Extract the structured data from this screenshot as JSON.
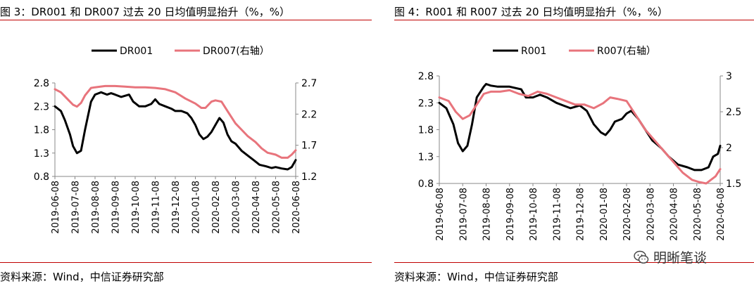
{
  "watermark": {
    "text": "明晰笔谈",
    "icon": "wechat-icon"
  },
  "panels": [
    {
      "title": "图 3：DR001 和 DR007 过去 20 日均值明显抬升（%，%）",
      "source": "资料来源：Wind，中信证券研究部"
    },
    {
      "title": "图 4：R001 和 R007 过去 20 日均值明显抬升（%，%）",
      "source": "资料来源：Wind，中信证券研究部"
    }
  ],
  "chart_data": [
    {
      "type": "line",
      "x_tick_labels": [
        "2019-06-08",
        "2019-07-08",
        "2019-08-08",
        "2019-09-08",
        "2019-10-08",
        "2019-11-08",
        "2019-12-08",
        "2020-01-08",
        "2020-02-08",
        "2020-03-08",
        "2020-04-08",
        "2020-05-08",
        "2020-06-08"
      ],
      "y_left": {
        "ticks": [
          "0.8",
          "1.3",
          "1.8",
          "2.3",
          "2.8"
        ],
        "range": [
          0.8,
          2.8
        ]
      },
      "y_right": {
        "ticks": [
          "1.2",
          "1.7",
          "2.2",
          "2.7"
        ],
        "range": [
          1.2,
          2.7
        ]
      },
      "legend_position": "top-center",
      "grid": false,
      "series": [
        {
          "name": "DR001",
          "axis": "left",
          "color": "#000000",
          "x": [
            0,
            0.3,
            0.5,
            0.75,
            0.9,
            1.1,
            1.3,
            1.5,
            1.8,
            2.0,
            2.3,
            2.6,
            2.8,
            3.0,
            3.3,
            3.7,
            3.9,
            4.2,
            4.5,
            4.8,
            5.0,
            5.2,
            5.5,
            5.8,
            6.0,
            6.3,
            6.6,
            6.8,
            7.0,
            7.2,
            7.4,
            7.6,
            7.8,
            8.0,
            8.2,
            8.4,
            8.6,
            8.8,
            9.0,
            9.3,
            9.6,
            9.9,
            10.2,
            10.5,
            10.8,
            11.0,
            11.3,
            11.6,
            11.8,
            12.0
          ],
          "y": [
            2.3,
            2.2,
            2.0,
            1.7,
            1.45,
            1.3,
            1.35,
            1.8,
            2.4,
            2.55,
            2.6,
            2.55,
            2.58,
            2.55,
            2.5,
            2.55,
            2.4,
            2.3,
            2.3,
            2.35,
            2.45,
            2.35,
            2.3,
            2.25,
            2.2,
            2.2,
            2.15,
            2.05,
            1.9,
            1.7,
            1.6,
            1.65,
            1.75,
            1.9,
            2.05,
            1.95,
            1.7,
            1.55,
            1.5,
            1.35,
            1.25,
            1.15,
            1.05,
            1.02,
            0.98,
            1.0,
            0.97,
            0.95,
            1.0,
            1.15
          ]
        },
        {
          "name": "DR007(右轴）",
          "axis": "right",
          "color": "#e8747c",
          "x": [
            0,
            0.3,
            0.6,
            0.9,
            1.1,
            1.3,
            1.5,
            1.8,
            2.0,
            2.5,
            3.0,
            3.5,
            4.0,
            4.5,
            5.0,
            5.5,
            6.0,
            6.5,
            7.0,
            7.3,
            7.5,
            7.8,
            8.0,
            8.3,
            8.6,
            9.0,
            9.3,
            9.6,
            10.0,
            10.3,
            10.6,
            11.0,
            11.3,
            11.6,
            11.8,
            12.0
          ],
          "y": [
            2.6,
            2.55,
            2.45,
            2.35,
            2.32,
            2.38,
            2.5,
            2.62,
            2.63,
            2.65,
            2.65,
            2.64,
            2.63,
            2.63,
            2.62,
            2.6,
            2.55,
            2.45,
            2.37,
            2.3,
            2.3,
            2.4,
            2.42,
            2.4,
            2.25,
            2.05,
            1.95,
            1.85,
            1.75,
            1.65,
            1.58,
            1.55,
            1.5,
            1.5,
            1.55,
            1.62
          ]
        }
      ]
    },
    {
      "type": "line",
      "x_tick_labels": [
        "2019-06-08",
        "2019-07-08",
        "2019-08-08",
        "2019-09-08",
        "2019-10-08",
        "2019-11-08",
        "2019-12-08",
        "2020-01-08",
        "2020-02-08",
        "2020-03-08",
        "2020-04-08",
        "2020-05-08",
        "2020-06-08"
      ],
      "y_left": {
        "ticks": [
          "0.8",
          "1.3",
          "1.8",
          "2.3",
          "2.8"
        ],
        "range": [
          0.8,
          2.8
        ]
      },
      "y_right": {
        "ticks": [
          "1.5",
          "2",
          "2.5",
          "3"
        ],
        "range": [
          1.5,
          3.0
        ]
      },
      "legend_position": "top-center",
      "grid": false,
      "series": [
        {
          "name": "R001",
          "axis": "left",
          "color": "#000000",
          "x": [
            0,
            0.3,
            0.6,
            0.8,
            1.0,
            1.2,
            1.4,
            1.6,
            1.9,
            2.0,
            2.2,
            2.5,
            3.0,
            3.5,
            3.7,
            4.0,
            4.3,
            4.6,
            5.0,
            5.3,
            5.6,
            6.0,
            6.3,
            6.6,
            6.9,
            7.1,
            7.3,
            7.5,
            7.8,
            8.0,
            8.2,
            8.5,
            8.8,
            9.1,
            9.5,
            9.8,
            10.2,
            10.6,
            10.9,
            11.2,
            11.5,
            11.7,
            11.9,
            12.0
          ],
          "y": [
            2.3,
            2.2,
            1.9,
            1.55,
            1.4,
            1.5,
            1.9,
            2.4,
            2.6,
            2.65,
            2.62,
            2.6,
            2.6,
            2.55,
            2.4,
            2.4,
            2.45,
            2.4,
            2.3,
            2.25,
            2.2,
            2.25,
            2.15,
            1.9,
            1.75,
            1.7,
            1.8,
            1.95,
            2.0,
            2.1,
            2.15,
            2.0,
            1.8,
            1.6,
            1.45,
            1.3,
            1.15,
            1.1,
            1.05,
            1.05,
            1.1,
            1.3,
            1.35,
            1.5
          ]
        },
        {
          "name": "R007(右轴）",
          "axis": "right",
          "color": "#e8747c",
          "x": [
            0,
            0.4,
            0.7,
            1.0,
            1.3,
            1.6,
            1.9,
            2.2,
            2.6,
            3.0,
            3.4,
            3.8,
            4.2,
            4.6,
            5.0,
            5.4,
            5.8,
            6.2,
            6.6,
            7.0,
            7.3,
            7.6,
            8.0,
            8.4,
            8.8,
            9.2,
            9.6,
            10.0,
            10.4,
            10.8,
            11.1,
            11.4,
            11.6,
            11.8,
            12.0
          ],
          "y": [
            2.7,
            2.65,
            2.5,
            2.4,
            2.45,
            2.6,
            2.75,
            2.78,
            2.78,
            2.8,
            2.75,
            2.72,
            2.78,
            2.75,
            2.7,
            2.65,
            2.6,
            2.6,
            2.55,
            2.62,
            2.7,
            2.68,
            2.65,
            2.45,
            2.25,
            2.1,
            1.95,
            1.8,
            1.65,
            1.55,
            1.52,
            1.5,
            1.55,
            1.6,
            1.7
          ]
        }
      ]
    }
  ]
}
